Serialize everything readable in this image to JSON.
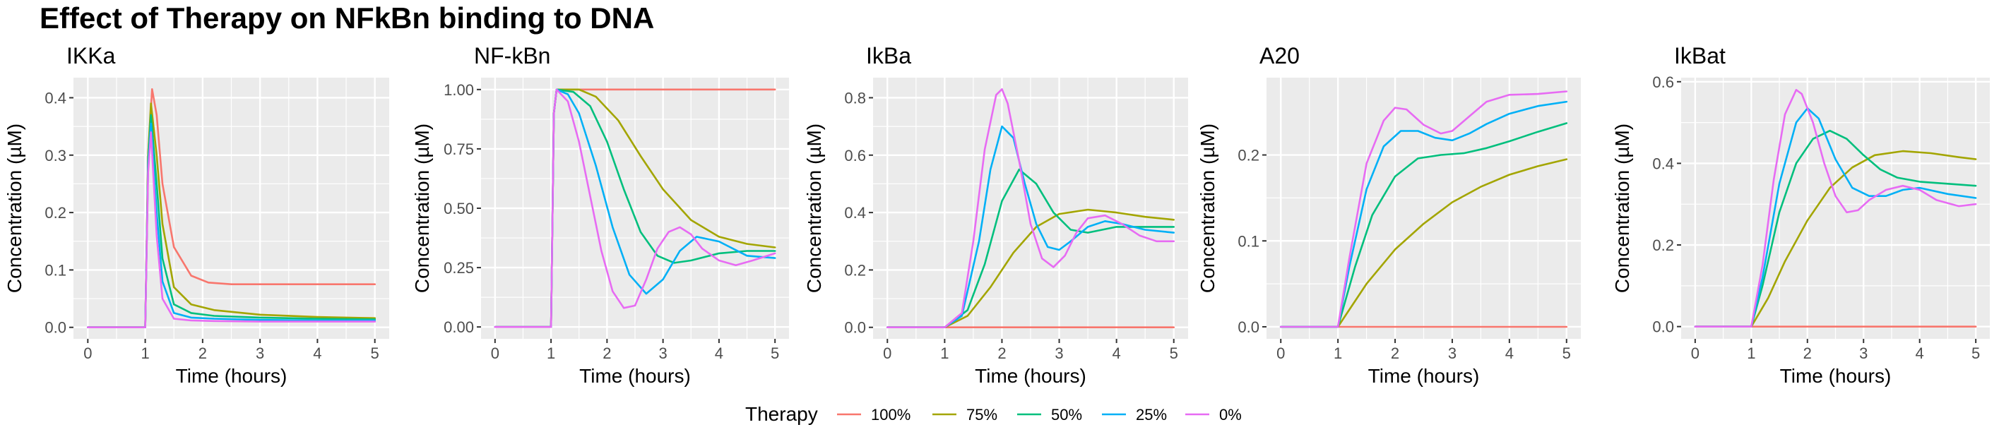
{
  "title": "Effect of Therapy on NFkBn binding to DNA",
  "legend": {
    "title": "Therapy",
    "entries": [
      {
        "label": "100%",
        "color": "#F8766D"
      },
      {
        "label": "75%",
        "color": "#A3A500"
      },
      {
        "label": "50%",
        "color": "#00BF7D"
      },
      {
        "label": "25%",
        "color": "#00B0F6"
      },
      {
        "label": "0%",
        "color": "#E76BF3"
      }
    ],
    "position": "bottom"
  },
  "chart_data": [
    {
      "type": "line",
      "title": "IKKa",
      "xlabel": "Time (hours)",
      "ylabel": "Concentration (µM)",
      "xlim": [
        -0.25,
        5.25
      ],
      "ylim": [
        -0.02,
        0.435
      ],
      "xticks": [
        0,
        1,
        2,
        3,
        4,
        5
      ],
      "yticks": [
        0.0,
        0.1,
        0.2,
        0.3,
        0.4
      ],
      "ytick_labels": [
        "0.0",
        "0.1",
        "0.2",
        "0.3",
        "0.4"
      ],
      "grid": true,
      "series": [
        {
          "name": "100%",
          "x": [
            0,
            1.0,
            1.05,
            1.12,
            1.2,
            1.3,
            1.5,
            1.8,
            2.1,
            2.5,
            3.0,
            5.0
          ],
          "y": [
            0,
            0,
            0.3,
            0.415,
            0.37,
            0.25,
            0.14,
            0.09,
            0.078,
            0.075,
            0.075,
            0.075
          ]
        },
        {
          "name": "75%",
          "x": [
            0,
            1.0,
            1.05,
            1.1,
            1.2,
            1.3,
            1.5,
            1.8,
            2.2,
            3.0,
            4.0,
            5.0
          ],
          "y": [
            0,
            0,
            0.3,
            0.39,
            0.3,
            0.18,
            0.07,
            0.04,
            0.03,
            0.022,
            0.018,
            0.016
          ]
        },
        {
          "name": "50%",
          "x": [
            0,
            1.0,
            1.05,
            1.1,
            1.2,
            1.3,
            1.5,
            1.8,
            2.2,
            3.0,
            4.0,
            5.0
          ],
          "y": [
            0,
            0,
            0.29,
            0.37,
            0.25,
            0.12,
            0.04,
            0.025,
            0.02,
            0.017,
            0.015,
            0.014
          ]
        },
        {
          "name": "25%",
          "x": [
            0,
            1.0,
            1.05,
            1.1,
            1.2,
            1.3,
            1.5,
            1.8,
            2.2,
            3.0,
            4.0,
            5.0
          ],
          "y": [
            0,
            0,
            0.28,
            0.355,
            0.2,
            0.08,
            0.025,
            0.017,
            0.015,
            0.013,
            0.012,
            0.012
          ]
        },
        {
          "name": "0%",
          "x": [
            0,
            1.0,
            1.05,
            1.1,
            1.2,
            1.3,
            1.5,
            1.8,
            2.2,
            3.0,
            4.0,
            5.0
          ],
          "y": [
            0,
            0,
            0.27,
            0.34,
            0.16,
            0.05,
            0.015,
            0.012,
            0.011,
            0.01,
            0.01,
            0.01
          ]
        }
      ]
    },
    {
      "type": "line",
      "title": "NF-kBn",
      "xlabel": "Time (hours)",
      "ylabel": "Concentration (µM)",
      "xlim": [
        -0.25,
        5.25
      ],
      "ylim": [
        -0.05,
        1.05
      ],
      "xticks": [
        0,
        1,
        2,
        3,
        4,
        5
      ],
      "yticks": [
        0.0,
        0.25,
        0.5,
        0.75,
        1.0
      ],
      "ytick_labels": [
        "0.00",
        "0.25",
        "0.50",
        "0.75",
        "1.00"
      ],
      "grid": true,
      "series": [
        {
          "name": "100%",
          "x": [
            0,
            1.0,
            1.05,
            1.1,
            5.0
          ],
          "y": [
            0,
            0,
            0.9,
            1.0,
            1.0
          ]
        },
        {
          "name": "75%",
          "x": [
            0,
            1.0,
            1.05,
            1.1,
            1.5,
            1.8,
            2.2,
            2.6,
            3.0,
            3.5,
            4.0,
            4.5,
            5.0
          ],
          "y": [
            0,
            0,
            0.9,
            1.0,
            1.0,
            0.97,
            0.87,
            0.72,
            0.58,
            0.45,
            0.38,
            0.35,
            0.335
          ]
        },
        {
          "name": "50%",
          "x": [
            0,
            1.0,
            1.05,
            1.1,
            1.4,
            1.7,
            2.0,
            2.3,
            2.6,
            2.9,
            3.2,
            3.5,
            4.0,
            4.5,
            5.0
          ],
          "y": [
            0,
            0,
            0.9,
            1.0,
            0.99,
            0.93,
            0.78,
            0.58,
            0.4,
            0.3,
            0.27,
            0.28,
            0.31,
            0.32,
            0.32
          ]
        },
        {
          "name": "25%",
          "x": [
            0,
            1.0,
            1.05,
            1.1,
            1.3,
            1.5,
            1.8,
            2.1,
            2.4,
            2.7,
            3.0,
            3.3,
            3.6,
            4.0,
            4.5,
            5.0
          ],
          "y": [
            0,
            0,
            0.9,
            1.0,
            0.98,
            0.9,
            0.68,
            0.42,
            0.22,
            0.14,
            0.2,
            0.32,
            0.38,
            0.36,
            0.3,
            0.29
          ]
        },
        {
          "name": "0%",
          "x": [
            0,
            1.0,
            1.05,
            1.1,
            1.3,
            1.5,
            1.7,
            1.9,
            2.1,
            2.3,
            2.5,
            2.7,
            2.9,
            3.1,
            3.3,
            3.5,
            3.7,
            4.0,
            4.3,
            4.6,
            5.0
          ],
          "y": [
            0,
            0,
            0.9,
            1.0,
            0.95,
            0.78,
            0.55,
            0.32,
            0.15,
            0.08,
            0.09,
            0.2,
            0.33,
            0.4,
            0.42,
            0.39,
            0.33,
            0.28,
            0.26,
            0.28,
            0.31
          ]
        }
      ]
    },
    {
      "type": "line",
      "title": "IkBa",
      "xlabel": "Time (hours)",
      "ylabel": "Concentration (µM)",
      "xlim": [
        -0.25,
        5.25
      ],
      "ylim": [
        -0.04,
        0.87
      ],
      "xticks": [
        0,
        1,
        2,
        3,
        4,
        5
      ],
      "yticks": [
        0.0,
        0.2,
        0.4,
        0.6,
        0.8
      ],
      "ytick_labels": [
        "0.0",
        "0.2",
        "0.4",
        "0.6",
        "0.8"
      ],
      "grid": true,
      "series": [
        {
          "name": "100%",
          "x": [
            0,
            5.0
          ],
          "y": [
            0,
            0
          ]
        },
        {
          "name": "75%",
          "x": [
            0,
            1.0,
            1.4,
            1.8,
            2.2,
            2.6,
            3.0,
            3.5,
            4.0,
            4.5,
            5.0
          ],
          "y": [
            0,
            0,
            0.04,
            0.14,
            0.26,
            0.35,
            0.395,
            0.41,
            0.4,
            0.385,
            0.375
          ]
        },
        {
          "name": "50%",
          "x": [
            0,
            1.0,
            1.4,
            1.7,
            2.0,
            2.3,
            2.6,
            2.9,
            3.2,
            3.5,
            4.0,
            4.5,
            5.0
          ],
          "y": [
            0,
            0,
            0.06,
            0.22,
            0.44,
            0.55,
            0.5,
            0.4,
            0.34,
            0.33,
            0.35,
            0.35,
            0.35
          ]
        },
        {
          "name": "25%",
          "x": [
            0,
            1.0,
            1.3,
            1.6,
            1.8,
            2.0,
            2.2,
            2.4,
            2.6,
            2.8,
            3.0,
            3.2,
            3.5,
            3.8,
            4.1,
            4.5,
            5.0
          ],
          "y": [
            0,
            0,
            0.04,
            0.3,
            0.55,
            0.7,
            0.66,
            0.5,
            0.36,
            0.28,
            0.27,
            0.3,
            0.35,
            0.37,
            0.36,
            0.34,
            0.33
          ]
        },
        {
          "name": "0%",
          "x": [
            0,
            1.0,
            1.3,
            1.5,
            1.7,
            1.9,
            2.0,
            2.1,
            2.3,
            2.5,
            2.7,
            2.9,
            3.1,
            3.3,
            3.5,
            3.8,
            4.1,
            4.4,
            4.7,
            5.0
          ],
          "y": [
            0,
            0,
            0.05,
            0.3,
            0.62,
            0.81,
            0.83,
            0.78,
            0.58,
            0.36,
            0.24,
            0.21,
            0.25,
            0.33,
            0.38,
            0.39,
            0.36,
            0.32,
            0.3,
            0.3
          ]
        }
      ]
    },
    {
      "type": "line",
      "title": "A20",
      "xlabel": "Time (hours)",
      "ylabel": "Concentration (µM)",
      "xlim": [
        -0.25,
        5.25
      ],
      "ylim": [
        -0.014,
        0.29
      ],
      "xticks": [
        0,
        1,
        2,
        3,
        4,
        5
      ],
      "yticks": [
        0.0,
        0.1,
        0.2
      ],
      "ytick_labels": [
        "0.0",
        "0.1",
        "0.2"
      ],
      "grid": true,
      "series": [
        {
          "name": "100%",
          "x": [
            0,
            5.0
          ],
          "y": [
            0,
            0
          ]
        },
        {
          "name": "75%",
          "x": [
            0,
            1.0,
            1.5,
            2.0,
            2.5,
            3.0,
            3.5,
            4.0,
            4.5,
            5.0
          ],
          "y": [
            0,
            0,
            0.05,
            0.09,
            0.12,
            0.145,
            0.163,
            0.177,
            0.187,
            0.195
          ]
        },
        {
          "name": "50%",
          "x": [
            0,
            1.0,
            1.3,
            1.6,
            2.0,
            2.4,
            2.8,
            3.2,
            3.6,
            4.0,
            4.5,
            5.0
          ],
          "y": [
            0,
            0,
            0.07,
            0.13,
            0.175,
            0.196,
            0.2,
            0.202,
            0.208,
            0.216,
            0.227,
            0.237
          ]
        },
        {
          "name": "25%",
          "x": [
            0,
            1.0,
            1.2,
            1.5,
            1.8,
            2.1,
            2.4,
            2.7,
            3.0,
            3.3,
            3.6,
            4.0,
            4.5,
            5.0
          ],
          "y": [
            0,
            0,
            0.07,
            0.16,
            0.21,
            0.228,
            0.228,
            0.22,
            0.217,
            0.225,
            0.236,
            0.248,
            0.257,
            0.262
          ]
        },
        {
          "name": "0%",
          "x": [
            0,
            1.0,
            1.2,
            1.5,
            1.8,
            2.0,
            2.2,
            2.5,
            2.8,
            3.0,
            3.3,
            3.6,
            4.0,
            4.5,
            5.0
          ],
          "y": [
            0,
            0,
            0.08,
            0.19,
            0.24,
            0.255,
            0.253,
            0.235,
            0.225,
            0.228,
            0.245,
            0.262,
            0.27,
            0.271,
            0.274
          ]
        }
      ]
    },
    {
      "type": "line",
      "title": "IkBat",
      "xlabel": "Time (hours)",
      "ylabel": "Concentration (µM)",
      "xlim": [
        -0.25,
        5.25
      ],
      "ylim": [
        -0.03,
        0.61
      ],
      "xticks": [
        0,
        1,
        2,
        3,
        4,
        5
      ],
      "yticks": [
        0.0,
        0.2,
        0.4,
        0.6
      ],
      "ytick_labels": [
        "0.0",
        "0.2",
        "0.4",
        "0.6"
      ],
      "grid": true,
      "series": [
        {
          "name": "100%",
          "x": [
            0,
            5.0
          ],
          "y": [
            0,
            0
          ]
        },
        {
          "name": "75%",
          "x": [
            0,
            1.0,
            1.3,
            1.6,
            2.0,
            2.4,
            2.8,
            3.2,
            3.7,
            4.2,
            4.7,
            5.0
          ],
          "y": [
            0,
            0,
            0.07,
            0.16,
            0.26,
            0.34,
            0.39,
            0.42,
            0.43,
            0.425,
            0.415,
            0.41
          ]
        },
        {
          "name": "50%",
          "x": [
            0,
            1.0,
            1.2,
            1.5,
            1.8,
            2.1,
            2.4,
            2.7,
            3.0,
            3.3,
            3.6,
            4.0,
            4.5,
            5.0
          ],
          "y": [
            0,
            0,
            0.1,
            0.28,
            0.4,
            0.46,
            0.48,
            0.46,
            0.42,
            0.385,
            0.365,
            0.355,
            0.35,
            0.345
          ]
        },
        {
          "name": "25%",
          "x": [
            0,
            1.0,
            1.2,
            1.5,
            1.8,
            2.0,
            2.2,
            2.5,
            2.8,
            3.1,
            3.4,
            3.7,
            4.0,
            4.5,
            5.0
          ],
          "y": [
            0,
            0,
            0.12,
            0.35,
            0.5,
            0.535,
            0.51,
            0.41,
            0.34,
            0.32,
            0.32,
            0.335,
            0.34,
            0.325,
            0.315
          ]
        },
        {
          "name": "0%",
          "x": [
            0,
            1.0,
            1.2,
            1.4,
            1.6,
            1.8,
            1.9,
            2.1,
            2.3,
            2.5,
            2.7,
            2.9,
            3.1,
            3.4,
            3.7,
            4.0,
            4.3,
            4.7,
            5.0
          ],
          "y": [
            0,
            0,
            0.15,
            0.36,
            0.52,
            0.58,
            0.57,
            0.5,
            0.4,
            0.32,
            0.28,
            0.285,
            0.31,
            0.335,
            0.345,
            0.335,
            0.31,
            0.295,
            0.3
          ]
        }
      ]
    }
  ]
}
